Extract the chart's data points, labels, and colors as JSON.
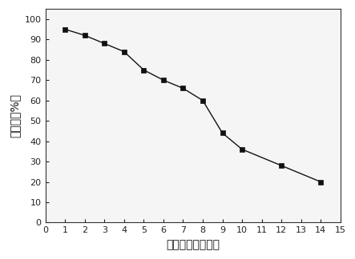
{
  "x": [
    1,
    2,
    3,
    4,
    5,
    6,
    7,
    8,
    9,
    10,
    12,
    14
  ],
  "y": [
    95,
    92,
    88,
    84,
    75,
    70,
    66,
    60,
    44,
    36,
    28,
    20
  ],
  "xlabel": "降解时间（分钟）",
  "ylabel": "降解率（%）",
  "xlim": [
    0,
    15
  ],
  "ylim": [
    0,
    105
  ],
  "xticks": [
    0,
    1,
    2,
    3,
    4,
    5,
    6,
    7,
    8,
    9,
    10,
    11,
    12,
    13,
    14,
    15
  ],
  "yticks": [
    0,
    10,
    20,
    30,
    40,
    50,
    60,
    70,
    80,
    90,
    100
  ],
  "line_color": "#111111",
  "marker": "s",
  "markersize": 4,
  "linewidth": 1.0,
  "background_color": "#ffffff",
  "label_fontsize": 10,
  "tick_fontsize": 8
}
